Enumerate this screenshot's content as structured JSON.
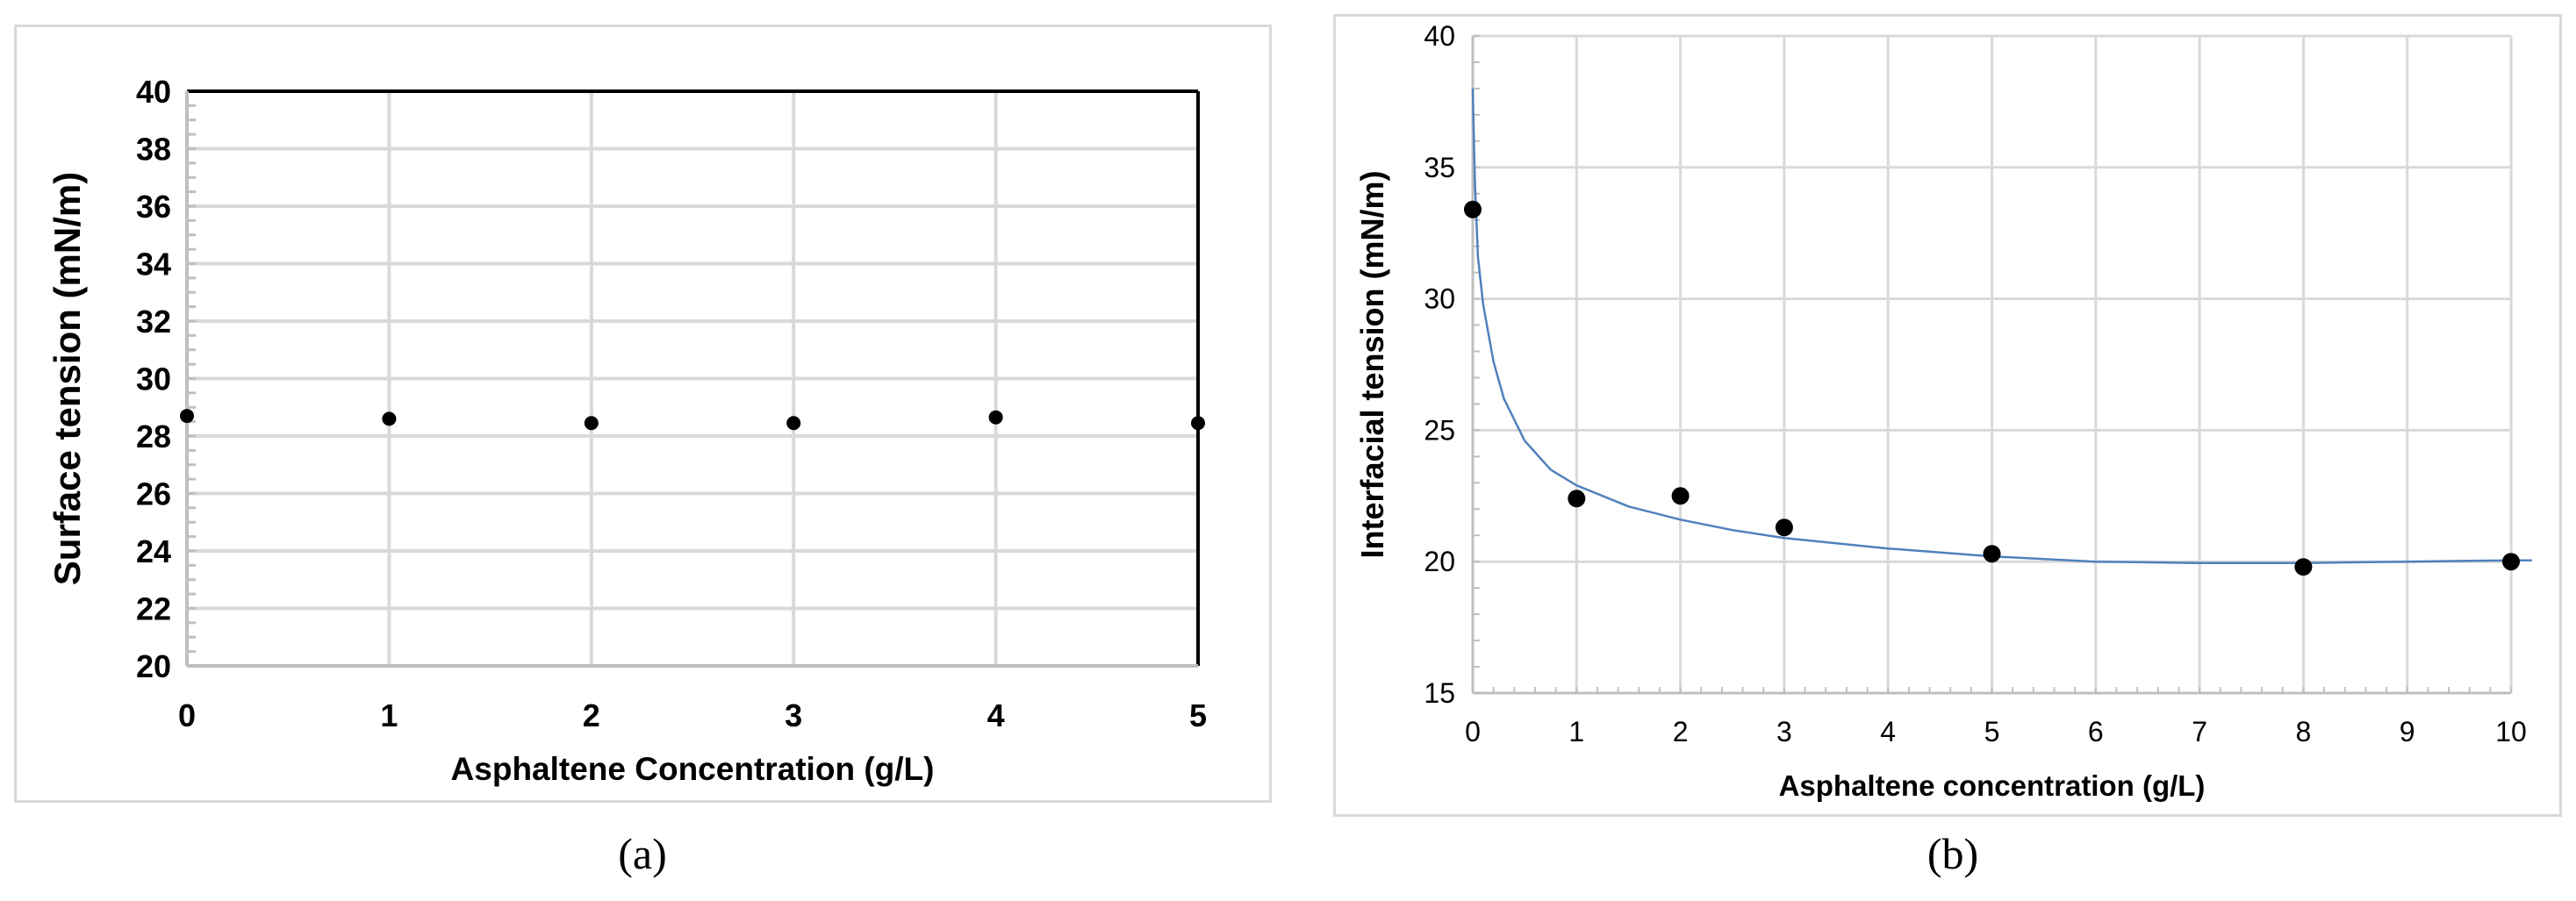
{
  "captions": {
    "a": "(a)",
    "b": "(b)"
  },
  "chart_data": [
    {
      "type": "scatter",
      "title": "",
      "xlabel": "Asphaltene Concentration (g/L)",
      "ylabel": "Surface tension (mN/m)",
      "xlim": [
        0,
        5
      ],
      "ylim": [
        20,
        40
      ],
      "xticks": [
        0,
        1,
        2,
        3,
        4,
        5
      ],
      "yticks": [
        20,
        22,
        24,
        26,
        28,
        30,
        32,
        34,
        36,
        38,
        40
      ],
      "grid": true,
      "legend": "none",
      "x": [
        0,
        1,
        2,
        3,
        4,
        5
      ],
      "y": [
        28.7,
        28.6,
        28.45,
        28.45,
        28.65,
        28.45
      ],
      "marker_color": "#000000"
    },
    {
      "type": "scatter",
      "title": "",
      "xlabel": "Asphaltene concentration (g/L)",
      "ylabel": "Interfacial tension (mN/m)",
      "xlim": [
        0,
        10
      ],
      "ylim": [
        15,
        40
      ],
      "xticks": [
        0,
        1,
        2,
        3,
        4,
        5,
        6,
        7,
        8,
        9,
        10
      ],
      "yticks": [
        15,
        20,
        25,
        30,
        35,
        40
      ],
      "grid": true,
      "legend": "none",
      "x": [
        0,
        1,
        2,
        3,
        5,
        8,
        10
      ],
      "y": [
        33.4,
        22.4,
        22.5,
        21.3,
        20.3,
        19.8,
        20.0
      ],
      "marker_color": "#000000",
      "trendline": {
        "color": "#4f81bd",
        "x": [
          0,
          0.02,
          0.05,
          0.1,
          0.2,
          0.3,
          0.5,
          0.75,
          1,
          1.5,
          2,
          2.5,
          3,
          4,
          5,
          6,
          7,
          8,
          9,
          10,
          10.2
        ],
        "y": [
          38.0,
          34.5,
          31.6,
          29.8,
          27.6,
          26.2,
          24.6,
          23.5,
          22.9,
          22.1,
          21.6,
          21.2,
          20.9,
          20.5,
          20.2,
          20.0,
          19.95,
          19.95,
          20.0,
          20.05,
          20.05
        ]
      }
    }
  ]
}
